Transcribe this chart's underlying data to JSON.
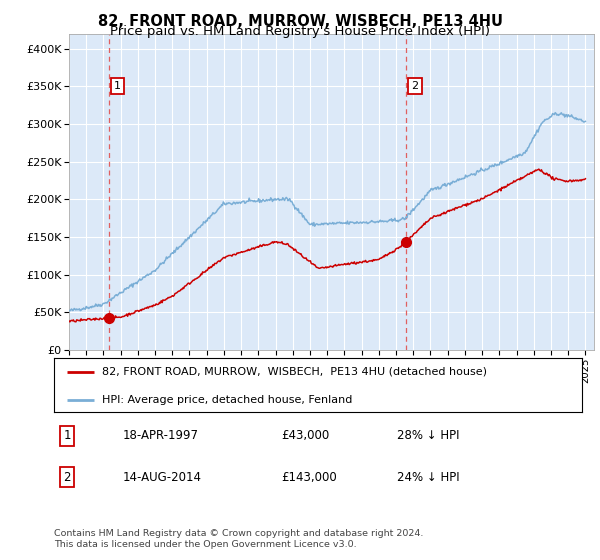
{
  "title": "82, FRONT ROAD, MURROW, WISBECH, PE13 4HU",
  "subtitle": "Price paid vs. HM Land Registry's House Price Index (HPI)",
  "xlim": [
    1995.0,
    2025.5
  ],
  "ylim": [
    0,
    420000
  ],
  "yticks": [
    0,
    50000,
    100000,
    150000,
    200000,
    250000,
    300000,
    350000,
    400000
  ],
  "ytick_labels": [
    "£0",
    "£50K",
    "£100K",
    "£150K",
    "£200K",
    "£250K",
    "£300K",
    "£350K",
    "£400K"
  ],
  "xticks": [
    1995,
    1996,
    1997,
    1998,
    1999,
    2000,
    2001,
    2002,
    2003,
    2004,
    2005,
    2006,
    2007,
    2008,
    2009,
    2010,
    2011,
    2012,
    2013,
    2014,
    2015,
    2016,
    2017,
    2018,
    2019,
    2020,
    2021,
    2022,
    2023,
    2024,
    2025
  ],
  "background_color": "#dce9f8",
  "red_line_color": "#cc0000",
  "blue_line_color": "#7aaed6",
  "marker1_x": 1997.3,
  "marker1_y": 43000,
  "marker2_x": 2014.6,
  "marker2_y": 143000,
  "vline1_x": 1997.3,
  "vline2_x": 2014.6,
  "legend_red_label": "82, FRONT ROAD, MURROW,  WISBECH,  PE13 4HU (detached house)",
  "legend_blue_label": "HPI: Average price, detached house, Fenland",
  "table_row1": [
    "1",
    "18-APR-1997",
    "£43,000",
    "28% ↓ HPI"
  ],
  "table_row2": [
    "2",
    "14-AUG-2014",
    "£143,000",
    "24% ↓ HPI"
  ],
  "footer": "Contains HM Land Registry data © Crown copyright and database right 2024.\nThis data is licensed under the Open Government Licence v3.0.",
  "title_fontsize": 10.5,
  "subtitle_fontsize": 9.5
}
